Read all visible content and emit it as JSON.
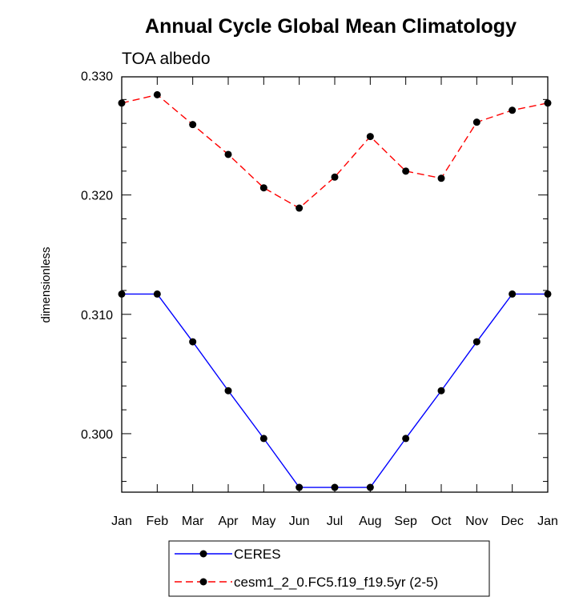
{
  "chart_data": {
    "type": "line",
    "title": "Annual Cycle Global Mean Climatology",
    "subtitle": "TOA albedo",
    "xlabel": "",
    "ylabel": "dimensionless",
    "categories": [
      "Jan",
      "Feb",
      "Mar",
      "Apr",
      "May",
      "Jun",
      "Jul",
      "Aug",
      "Sep",
      "Oct",
      "Nov",
      "Dec",
      "Jan"
    ],
    "ylim": [
      0.2951,
      0.3299
    ],
    "yticks": [
      0.3,
      0.31,
      0.32,
      0.33
    ],
    "ytick_labels": [
      "0.300",
      "0.310",
      "0.320",
      "0.330"
    ],
    "grid": false,
    "legend_position": "bottom-center",
    "series": [
      {
        "name": "CERES",
        "color": "#0000ff",
        "dash": "solid",
        "values": [
          0.3117,
          0.3117,
          0.3077,
          0.3036,
          0.2996,
          0.2955,
          0.2955,
          0.2955,
          0.2996,
          0.3036,
          0.3077,
          0.3117,
          0.3117
        ]
      },
      {
        "name": "cesm1_2_0.FC5.f19_f19.5yr (2-5)",
        "color": "#ff0000",
        "dash": "dashed",
        "values": [
          0.3277,
          0.3284,
          0.3259,
          0.3234,
          0.3206,
          0.3189,
          0.3215,
          0.3249,
          0.322,
          0.3214,
          0.3261,
          0.3271,
          0.3277
        ]
      }
    ]
  }
}
